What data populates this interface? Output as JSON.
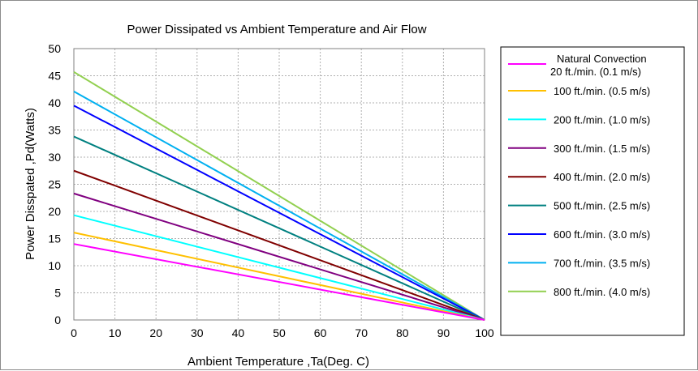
{
  "chart_data": {
    "type": "line",
    "title": "Power Dissipated vs Ambient Temperature and Air Flow",
    "xlabel": "Ambient Temperature ,Ta(Deg. C)",
    "ylabel": "Power Disspated ,Pd(Watts)",
    "xlim": [
      0,
      100
    ],
    "ylim": [
      0,
      50
    ],
    "xticks": [
      0,
      10,
      20,
      30,
      40,
      50,
      60,
      70,
      80,
      90,
      100
    ],
    "yticks": [
      0,
      5,
      10,
      15,
      20,
      25,
      30,
      35,
      40,
      45,
      50
    ],
    "grid": true,
    "legend_position": "right",
    "series": [
      {
        "name": "Natural Convection",
        "name_line2": "20 ft./min. (0.1 m/s)",
        "color": "#ff00ff",
        "x": [
          0,
          100
        ],
        "y": [
          14.0,
          0
        ]
      },
      {
        "name": "100 ft./min. (0.5 m/s)",
        "color": "#ffc000",
        "x": [
          0,
          100
        ],
        "y": [
          16.1,
          0
        ]
      },
      {
        "name": "200 ft./min. (1.0 m/s)",
        "color": "#00ffff",
        "x": [
          0,
          100
        ],
        "y": [
          19.3,
          0
        ]
      },
      {
        "name": "300 ft./min. (1.5 m/s)",
        "color": "#800080",
        "x": [
          0,
          100
        ],
        "y": [
          23.3,
          0
        ]
      },
      {
        "name": "400 ft./min. (2.0 m/s)",
        "color": "#800000",
        "x": [
          0,
          100
        ],
        "y": [
          27.5,
          0
        ]
      },
      {
        "name": "500 ft./min. (2.5 m/s)",
        "color": "#008080",
        "x": [
          0,
          100
        ],
        "y": [
          33.8,
          0
        ]
      },
      {
        "name": "600 ft./min. (3.0 m/s)",
        "color": "#0000ff",
        "x": [
          0,
          100
        ],
        "y": [
          39.5,
          0
        ]
      },
      {
        "name": "700 ft./min. (3.5 m/s)",
        "color": "#00b0f0",
        "x": [
          0,
          100
        ],
        "y": [
          42.1,
          0
        ]
      },
      {
        "name": "800 ft./min. (4.0 m/s)",
        "color": "#92d050",
        "x": [
          0,
          100
        ],
        "y": [
          45.7,
          0
        ]
      }
    ]
  }
}
